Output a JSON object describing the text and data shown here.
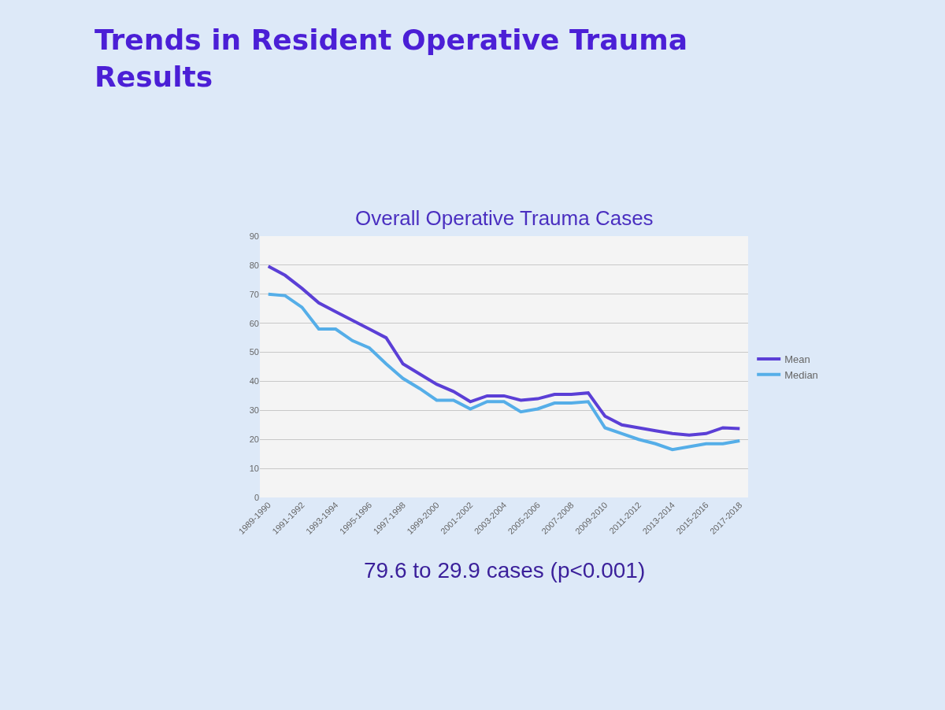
{
  "chart_data": {
    "type": "line",
    "title": "Trends in Resident Operative Trauma\nResults",
    "subtitle": "Overall Operative Trauma Cases",
    "categories": [
      "1989-1990",
      null,
      "1991-1992",
      null,
      "1993-1994",
      null,
      "1995-1996",
      null,
      "1997-1998",
      null,
      "1999-2000",
      null,
      "2001-2002",
      null,
      "2003-2004",
      null,
      "2005-2006",
      null,
      "2007-2008",
      null,
      "2009-2010",
      null,
      "2011-2012",
      null,
      "2013-2014",
      null,
      "2015-2016",
      null,
      "2017-2018"
    ],
    "series": [
      {
        "name": "Mean",
        "color": "#5b3fd6",
        "values": [
          79.6,
          76.5,
          72,
          67,
          64,
          61,
          58,
          55,
          46,
          42.5,
          39,
          36.5,
          33,
          35,
          35,
          33.5,
          34,
          35.5,
          35.5,
          36,
          28,
          25,
          24,
          23,
          22,
          21.5,
          22,
          24,
          23.7
        ]
      },
      {
        "name": "Median",
        "color": "#55aee8",
        "values": [
          70,
          69.5,
          65.5,
          58,
          58,
          54,
          51.5,
          46,
          41,
          37.5,
          33.5,
          33.5,
          30.5,
          33,
          33,
          29.5,
          30.5,
          32.5,
          32.5,
          33,
          24,
          22,
          20,
          18.5,
          16.5,
          17.5,
          18.5,
          18.5,
          19.5
        ]
      }
    ],
    "ylim": [
      0,
      90
    ],
    "yticks": [
      0,
      10,
      20,
      30,
      40,
      50,
      60,
      70,
      80,
      90
    ],
    "grid": "y",
    "legend": "right",
    "marker": "none",
    "line_style": "solid",
    "annotations": [
      "79.6 to 29.9 cases (p<0.001)"
    ]
  }
}
